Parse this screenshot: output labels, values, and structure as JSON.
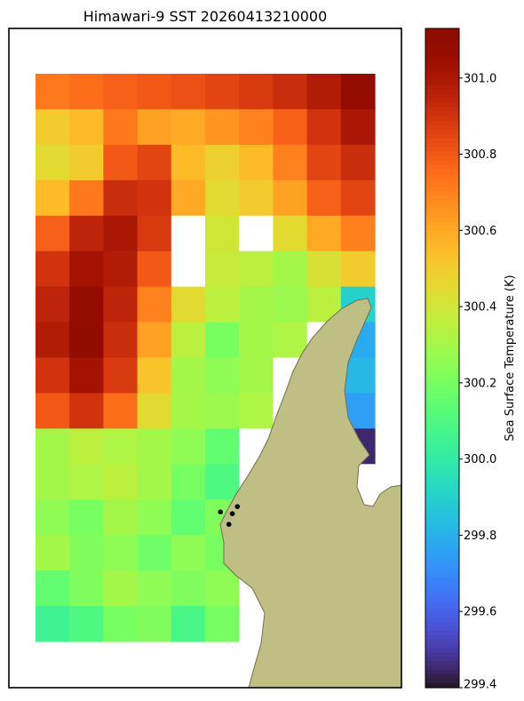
{
  "chart_data": {
    "type": "heatmap",
    "title": "Himawari-9 SST 20260413210000",
    "colorbar": {
      "label": "Sea Surface Temperature (K)",
      "range": [
        299.4,
        301.13
      ],
      "ticks": [
        {
          "value": 299.4,
          "label": "299.4"
        },
        {
          "value": 299.6,
          "label": "299.6"
        },
        {
          "value": 299.8,
          "label": "299.8"
        },
        {
          "value": 300.0,
          "label": "300.0"
        },
        {
          "value": 300.2,
          "label": "300.2"
        },
        {
          "value": 300.4,
          "label": "300.4"
        },
        {
          "value": 300.6,
          "label": "300.6"
        },
        {
          "value": 300.8,
          "label": "300.8"
        },
        {
          "value": 301.0,
          "label": "301.0"
        }
      ],
      "colormap": "turbo"
    },
    "grid": false,
    "land_color": "#bfbf85",
    "missing_color": "#ffffff",
    "field": {
      "rows": 16,
      "cols": 10,
      "values": [
        [
          300.72,
          300.75,
          300.78,
          300.8,
          300.82,
          300.85,
          300.88,
          300.92,
          300.98,
          301.08
        ],
        [
          300.5,
          300.55,
          300.72,
          300.62,
          300.6,
          300.65,
          300.7,
          300.78,
          300.9,
          301.0
        ],
        [
          300.45,
          300.5,
          300.8,
          300.85,
          300.55,
          300.48,
          300.55,
          300.7,
          300.85,
          300.92
        ],
        [
          300.55,
          300.72,
          300.92,
          300.9,
          300.6,
          300.45,
          300.5,
          300.62,
          300.78,
          300.85
        ],
        [
          300.78,
          300.95,
          301.0,
          300.88,
          null,
          300.4,
          null,
          300.45,
          300.6,
          300.7
        ],
        [
          300.9,
          301.02,
          300.98,
          300.8,
          null,
          300.38,
          300.35,
          300.3,
          300.42,
          300.5
        ],
        [
          300.95,
          301.08,
          300.95,
          300.7,
          300.45,
          300.35,
          300.3,
          300.28,
          300.35,
          299.9
        ],
        [
          300.98,
          301.1,
          300.92,
          300.62,
          300.35,
          300.2,
          300.3,
          300.32,
          null,
          299.78
        ],
        [
          300.9,
          301.02,
          300.88,
          300.52,
          300.3,
          300.25,
          300.3,
          null,
          null,
          299.82
        ],
        [
          300.8,
          300.9,
          300.75,
          300.45,
          300.3,
          300.28,
          300.32,
          null,
          null,
          299.75
        ],
        [
          300.3,
          300.35,
          300.32,
          300.3,
          300.25,
          300.15,
          null,
          null,
          null,
          299.45
        ],
        [
          300.3,
          300.32,
          300.35,
          300.3,
          300.2,
          300.1,
          null,
          null,
          null,
          null
        ],
        [
          300.25,
          300.2,
          300.3,
          300.25,
          300.15,
          300.22,
          null,
          null,
          null,
          null
        ],
        [
          300.3,
          300.22,
          300.25,
          300.18,
          300.25,
          300.2,
          null,
          null,
          null,
          null
        ],
        [
          300.15,
          300.22,
          300.3,
          300.25,
          300.22,
          300.25,
          null,
          null,
          null,
          null
        ],
        [
          300.05,
          300.1,
          300.2,
          300.22,
          300.08,
          300.2,
          null,
          null,
          null,
          null
        ]
      ]
    },
    "points_annotation": "4 black markers near the coast",
    "markers": [
      {
        "lon_index": 5.45,
        "lat_index": 12.35
      },
      {
        "lon_index": 5.8,
        "lat_index": 12.4
      },
      {
        "lon_index": 5.95,
        "lat_index": 12.2
      },
      {
        "lon_index": 5.7,
        "lat_index": 12.7
      }
    ]
  }
}
